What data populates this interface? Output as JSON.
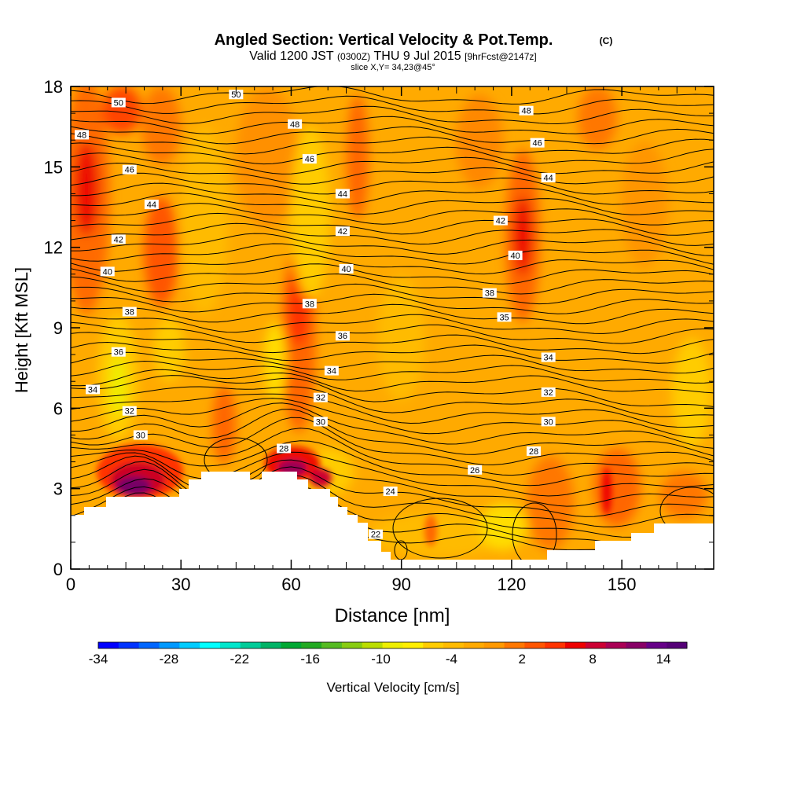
{
  "header": {
    "title_main": "Angled Section: Vertical Velocity & Pot.Temp.",
    "title_units": "(C)",
    "valid_prefix": "Valid 1200 JST",
    "valid_utc": "(0300Z)",
    "valid_date": "THU 9 Jul 2015",
    "valid_fcst": "[9hrFcst@2147z]",
    "slice": "slice X,Y= 34,23@45°"
  },
  "chart_data": {
    "type": "heatmap",
    "title": "Angled Section: Vertical Velocity & Pot.Temp. (C)",
    "xlabel": "Distance [nm]",
    "ylabel": "Height [Kft MSL]",
    "xlim": [
      0,
      175
    ],
    "ylim": [
      0,
      18
    ],
    "x_ticks": [
      "0",
      "30",
      "60",
      "90",
      "120",
      "150"
    ],
    "x_tick_values": [
      0,
      30,
      60,
      90,
      120,
      150
    ],
    "y_ticks": [
      "0",
      "3",
      "6",
      "9",
      "12",
      "15",
      "18"
    ],
    "y_tick_values": [
      0,
      3,
      6,
      9,
      12,
      15,
      18
    ],
    "colorbar": {
      "label": "Vertical Velocity [cm/s]",
      "tick_labels": [
        "-34",
        "-28",
        "-22",
        "-16",
        "-10",
        "-4",
        "2",
        "8",
        "14"
      ],
      "min": -34,
      "max": 16,
      "step": 2,
      "colors": [
        "#0000ff",
        "#0033ff",
        "#0066ff",
        "#0099ff",
        "#00ccff",
        "#00ffff",
        "#00e6cc",
        "#00cc99",
        "#00b366",
        "#00a833",
        "#22aa22",
        "#55bb22",
        "#88cc11",
        "#bbdd00",
        "#eeee00",
        "#ffee00",
        "#ffcc00",
        "#ffbb00",
        "#ffaa00",
        "#ff9900",
        "#ff7700",
        "#ff5500",
        "#ff3300",
        "#ee0000",
        "#cc0033",
        "#aa0055",
        "#880066",
        "#660088",
        "#550077"
      ]
    },
    "theta_labels": [
      {
        "x": 13,
        "y": 17.4,
        "text": "50"
      },
      {
        "x": 45,
        "y": 17.7,
        "text": "50"
      },
      {
        "x": 3,
        "y": 16.2,
        "text": "48"
      },
      {
        "x": 61,
        "y": 16.6,
        "text": "48"
      },
      {
        "x": 124,
        "y": 17.1,
        "text": "48"
      },
      {
        "x": 16,
        "y": 14.9,
        "text": "46"
      },
      {
        "x": 65,
        "y": 15.3,
        "text": "46"
      },
      {
        "x": 127,
        "y": 15.9,
        "text": "46"
      },
      {
        "x": 22,
        "y": 13.6,
        "text": "44"
      },
      {
        "x": 74,
        "y": 14.0,
        "text": "44"
      },
      {
        "x": 130,
        "y": 14.6,
        "text": "44"
      },
      {
        "x": 13,
        "y": 12.3,
        "text": "42"
      },
      {
        "x": 74,
        "y": 12.6,
        "text": "42"
      },
      {
        "x": 117,
        "y": 13.0,
        "text": "42"
      },
      {
        "x": 10,
        "y": 11.1,
        "text": "40"
      },
      {
        "x": 75,
        "y": 11.2,
        "text": "40"
      },
      {
        "x": 121,
        "y": 11.7,
        "text": "40"
      },
      {
        "x": 16,
        "y": 9.6,
        "text": "38"
      },
      {
        "x": 65,
        "y": 9.9,
        "text": "38"
      },
      {
        "x": 114,
        "y": 10.3,
        "text": "38"
      },
      {
        "x": 13,
        "y": 8.1,
        "text": "36"
      },
      {
        "x": 74,
        "y": 8.7,
        "text": "36"
      },
      {
        "x": 118,
        "y": 9.4,
        "text": "35"
      },
      {
        "x": 6,
        "y": 6.7,
        "text": "34"
      },
      {
        "x": 71,
        "y": 7.4,
        "text": "34"
      },
      {
        "x": 130,
        "y": 7.9,
        "text": "34"
      },
      {
        "x": 16,
        "y": 5.9,
        "text": "32"
      },
      {
        "x": 68,
        "y": 6.4,
        "text": "32"
      },
      {
        "x": 130,
        "y": 6.6,
        "text": "32"
      },
      {
        "x": 19,
        "y": 5.0,
        "text": "30"
      },
      {
        "x": 68,
        "y": 5.5,
        "text": "30"
      },
      {
        "x": 130,
        "y": 5.5,
        "text": "30"
      },
      {
        "x": 58,
        "y": 4.5,
        "text": "28"
      },
      {
        "x": 126,
        "y": 4.4,
        "text": "28"
      },
      {
        "x": 110,
        "y": 3.7,
        "text": "26"
      },
      {
        "x": 87,
        "y": 2.9,
        "text": "24"
      },
      {
        "x": 83,
        "y": 1.3,
        "text": "22"
      }
    ],
    "grid": false,
    "legend": "bottom colorbar"
  }
}
